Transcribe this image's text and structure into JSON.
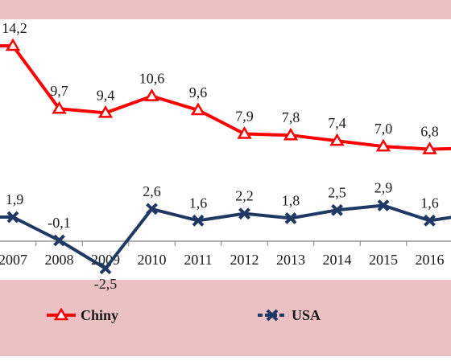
{
  "chart_data": {
    "type": "line",
    "categories": [
      "2007",
      "2008",
      "2009",
      "2010",
      "2011",
      "2012",
      "2013",
      "2014",
      "2015",
      "2016"
    ],
    "series": [
      {
        "name": "Chiny",
        "color": "#ff0000",
        "marker": "triangle",
        "values": [
          14.2,
          9.7,
          9.4,
          10.6,
          9.6,
          7.9,
          7.8,
          7.4,
          7.0,
          6.8
        ],
        "labels": [
          "14,2",
          "9,7",
          "9,4",
          "10,6",
          "9,6",
          "7,9",
          "7,8",
          "7,4",
          "7,0",
          "6,8"
        ],
        "partial_first": 14.2,
        "partial_last": 6.9
      },
      {
        "name": "USA",
        "color": "#1f3864",
        "marker": "x",
        "values": [
          1.9,
          -0.1,
          -2.5,
          2.6,
          1.6,
          2.2,
          1.8,
          2.5,
          2.9,
          1.6
        ],
        "labels": [
          "1,9",
          "-0,1",
          "-2,5",
          "2,6",
          "1,6",
          "2,2",
          "1,8",
          "2,5",
          "2,9",
          "1,6"
        ],
        "partial_first": 1.9,
        "partial_last": 2.2
      }
    ],
    "legend_position": "bottom",
    "panel_color": "#ebc1c3",
    "grid": false
  }
}
